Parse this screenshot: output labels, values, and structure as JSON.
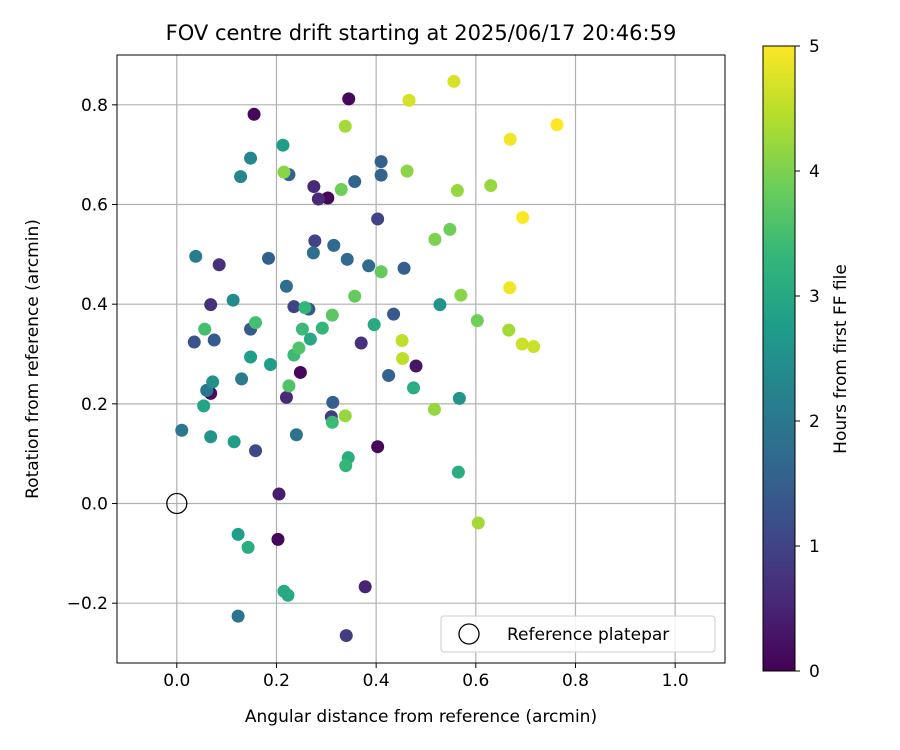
{
  "chart_data": {
    "type": "scatter",
    "title": "FOV centre drift starting at 2025/06/17 20:46:59",
    "xlabel": "Angular distance from reference (arcmin)",
    "ylabel": "Rotation from reference (arcmin)",
    "xlim": [
      -0.12,
      1.1
    ],
    "ylim": [
      -0.32,
      0.9
    ],
    "xticks": [
      0.0,
      0.2,
      0.4,
      0.6,
      0.8,
      1.0
    ],
    "xtick_labels": [
      "0.0",
      "0.2",
      "0.4",
      "0.6",
      "0.8",
      "1.0"
    ],
    "yticks": [
      -0.2,
      0.0,
      0.2,
      0.4,
      0.6,
      0.8
    ],
    "ytick_labels": [
      "−0.2",
      "0.0",
      "0.2",
      "0.4",
      "0.6",
      "0.8"
    ],
    "grid": true,
    "colormap": "viridis",
    "colorbar": {
      "label": "Hours from first FF file",
      "range": [
        0,
        5
      ],
      "ticks": [
        0,
        1,
        2,
        3,
        4,
        5
      ],
      "tick_labels": [
        "0",
        "1",
        "2",
        "3",
        "4",
        "5"
      ]
    },
    "reference": {
      "label": "Reference platepar",
      "x": 0.0,
      "y": 0.0,
      "marker": "open-circle",
      "color": "#000000"
    },
    "legend_position": "bottom-right",
    "points": [
      {
        "x": 0.155,
        "y": 0.781,
        "c": 0.1
      },
      {
        "x": 0.345,
        "y": 0.812,
        "c": 0.1
      },
      {
        "x": 0.303,
        "y": 0.613,
        "c": 0.1
      },
      {
        "x": 0.248,
        "y": 0.263,
        "c": 0.1
      },
      {
        "x": 0.203,
        "y": -0.072,
        "c": 0.1
      },
      {
        "x": 0.403,
        "y": 0.114,
        "c": 0.1
      },
      {
        "x": 0.068,
        "y": 0.221,
        "c": 0.2
      },
      {
        "x": 0.48,
        "y": 0.276,
        "c": 0.3
      },
      {
        "x": 0.205,
        "y": 0.019,
        "c": 0.4
      },
      {
        "x": 0.378,
        "y": -0.167,
        "c": 0.5
      },
      {
        "x": 0.275,
        "y": 0.636,
        "c": 0.6
      },
      {
        "x": 0.284,
        "y": 0.611,
        "c": 0.6
      },
      {
        "x": 0.085,
        "y": 0.479,
        "c": 0.7
      },
      {
        "x": 0.068,
        "y": 0.399,
        "c": 0.7
      },
      {
        "x": 0.22,
        "y": 0.213,
        "c": 0.6
      },
      {
        "x": 0.37,
        "y": 0.322,
        "c": 0.7
      },
      {
        "x": 0.34,
        "y": -0.265,
        "c": 0.9
      },
      {
        "x": 0.31,
        "y": 0.174,
        "c": 0.9
      },
      {
        "x": 0.277,
        "y": 0.527,
        "c": 1.0
      },
      {
        "x": 0.403,
        "y": 0.571,
        "c": 1.0
      },
      {
        "x": 0.235,
        "y": 0.395,
        "c": 1.0
      },
      {
        "x": 0.158,
        "y": 0.106,
        "c": 1.1
      },
      {
        "x": 0.035,
        "y": 0.324,
        "c": 1.3
      },
      {
        "x": 0.075,
        "y": 0.328,
        "c": 1.4
      },
      {
        "x": 0.148,
        "y": 0.35,
        "c": 1.4
      },
      {
        "x": 0.265,
        "y": 0.39,
        "c": 1.4
      },
      {
        "x": 0.435,
        "y": 0.38,
        "c": 1.4
      },
      {
        "x": 0.184,
        "y": 0.492,
        "c": 1.5
      },
      {
        "x": 0.41,
        "y": 0.686,
        "c": 1.5
      },
      {
        "x": 0.456,
        "y": 0.472,
        "c": 1.5
      },
      {
        "x": 0.313,
        "y": 0.203,
        "c": 1.5
      },
      {
        "x": 0.225,
        "y": 0.66,
        "c": 1.6
      },
      {
        "x": 0.357,
        "y": 0.646,
        "c": 1.6
      },
      {
        "x": 0.41,
        "y": 0.659,
        "c": 1.6
      },
      {
        "x": 0.425,
        "y": 0.257,
        "c": 1.6
      },
      {
        "x": 0.385,
        "y": 0.477,
        "c": 1.7
      },
      {
        "x": 0.315,
        "y": 0.518,
        "c": 1.7
      },
      {
        "x": 0.342,
        "y": 0.49,
        "c": 1.7
      },
      {
        "x": 0.274,
        "y": 0.503,
        "c": 1.8
      },
      {
        "x": 0.22,
        "y": 0.436,
        "c": 1.8
      },
      {
        "x": 0.24,
        "y": 0.138,
        "c": 1.9
      },
      {
        "x": 0.123,
        "y": -0.226,
        "c": 1.9
      },
      {
        "x": 0.01,
        "y": 0.147,
        "c": 2.0
      },
      {
        "x": 0.06,
        "y": 0.227,
        "c": 2.0
      },
      {
        "x": 0.13,
        "y": 0.25,
        "c": 2.1
      },
      {
        "x": 0.038,
        "y": 0.496,
        "c": 2.1
      },
      {
        "x": 0.128,
        "y": 0.656,
        "c": 2.3
      },
      {
        "x": 0.148,
        "y": 0.693,
        "c": 2.3
      },
      {
        "x": 0.113,
        "y": 0.408,
        "c": 2.4
      },
      {
        "x": 0.072,
        "y": 0.244,
        "c": 2.5
      },
      {
        "x": 0.068,
        "y": 0.134,
        "c": 2.6
      },
      {
        "x": 0.528,
        "y": 0.399,
        "c": 2.6
      },
      {
        "x": 0.567,
        "y": 0.211,
        "c": 2.6
      },
      {
        "x": 0.213,
        "y": 0.719,
        "c": 2.8
      },
      {
        "x": 0.115,
        "y": 0.124,
        "c": 2.8
      },
      {
        "x": 0.123,
        "y": -0.062,
        "c": 2.8
      },
      {
        "x": 0.188,
        "y": 0.279,
        "c": 2.8
      },
      {
        "x": 0.148,
        "y": 0.294,
        "c": 2.8
      },
      {
        "x": 0.054,
        "y": 0.196,
        "c": 2.9
      },
      {
        "x": 0.215,
        "y": -0.176,
        "c": 3.0
      },
      {
        "x": 0.223,
        "y": -0.184,
        "c": 3.0
      },
      {
        "x": 0.268,
        "y": 0.33,
        "c": 3.0
      },
      {
        "x": 0.396,
        "y": 0.359,
        "c": 3.0
      },
      {
        "x": 0.475,
        "y": 0.232,
        "c": 3.1
      },
      {
        "x": 0.344,
        "y": 0.092,
        "c": 3.1
      },
      {
        "x": 0.565,
        "y": 0.063,
        "c": 3.1
      },
      {
        "x": 0.143,
        "y": -0.088,
        "c": 3.1
      },
      {
        "x": 0.257,
        "y": 0.393,
        "c": 3.3
      },
      {
        "x": 0.292,
        "y": 0.352,
        "c": 3.3
      },
      {
        "x": 0.339,
        "y": 0.076,
        "c": 3.3
      },
      {
        "x": 0.252,
        "y": 0.35,
        "c": 3.4
      },
      {
        "x": 0.235,
        "y": 0.298,
        "c": 3.4
      },
      {
        "x": 0.312,
        "y": 0.163,
        "c": 3.4
      },
      {
        "x": 0.056,
        "y": 0.35,
        "c": 3.5
      },
      {
        "x": 0.158,
        "y": 0.363,
        "c": 3.5
      },
      {
        "x": 0.245,
        "y": 0.312,
        "c": 3.6
      },
      {
        "x": 0.225,
        "y": 0.236,
        "c": 3.6
      },
      {
        "x": 0.312,
        "y": 0.378,
        "c": 3.7
      },
      {
        "x": 0.357,
        "y": 0.416,
        "c": 3.8
      },
      {
        "x": 0.41,
        "y": 0.465,
        "c": 3.8
      },
      {
        "x": 0.33,
        "y": 0.63,
        "c": 3.9
      },
      {
        "x": 0.548,
        "y": 0.55,
        "c": 3.9
      },
      {
        "x": 0.603,
        "y": 0.367,
        "c": 3.9
      },
      {
        "x": 0.518,
        "y": 0.53,
        "c": 4.0
      },
      {
        "x": 0.215,
        "y": 0.665,
        "c": 4.1
      },
      {
        "x": 0.462,
        "y": 0.667,
        "c": 4.1
      },
      {
        "x": 0.57,
        "y": 0.418,
        "c": 4.1
      },
      {
        "x": 0.563,
        "y": 0.628,
        "c": 4.2
      },
      {
        "x": 0.517,
        "y": 0.189,
        "c": 4.2
      },
      {
        "x": 0.338,
        "y": 0.176,
        "c": 4.2
      },
      {
        "x": 0.63,
        "y": 0.638,
        "c": 4.2
      },
      {
        "x": 0.666,
        "y": 0.348,
        "c": 4.3
      },
      {
        "x": 0.605,
        "y": -0.039,
        "c": 4.3
      },
      {
        "x": 0.338,
        "y": 0.757,
        "c": 4.3
      },
      {
        "x": 0.452,
        "y": 0.327,
        "c": 4.5
      },
      {
        "x": 0.453,
        "y": 0.291,
        "c": 4.5
      },
      {
        "x": 0.693,
        "y": 0.32,
        "c": 4.6
      },
      {
        "x": 0.716,
        "y": 0.315,
        "c": 4.6
      },
      {
        "x": 0.466,
        "y": 0.809,
        "c": 4.7
      },
      {
        "x": 0.556,
        "y": 0.847,
        "c": 4.7
      },
      {
        "x": 0.668,
        "y": 0.433,
        "c": 4.9
      },
      {
        "x": 0.669,
        "y": 0.731,
        "c": 4.9
      },
      {
        "x": 0.694,
        "y": 0.574,
        "c": 5.0
      },
      {
        "x": 0.763,
        "y": 0.76,
        "c": 5.0
      }
    ]
  }
}
